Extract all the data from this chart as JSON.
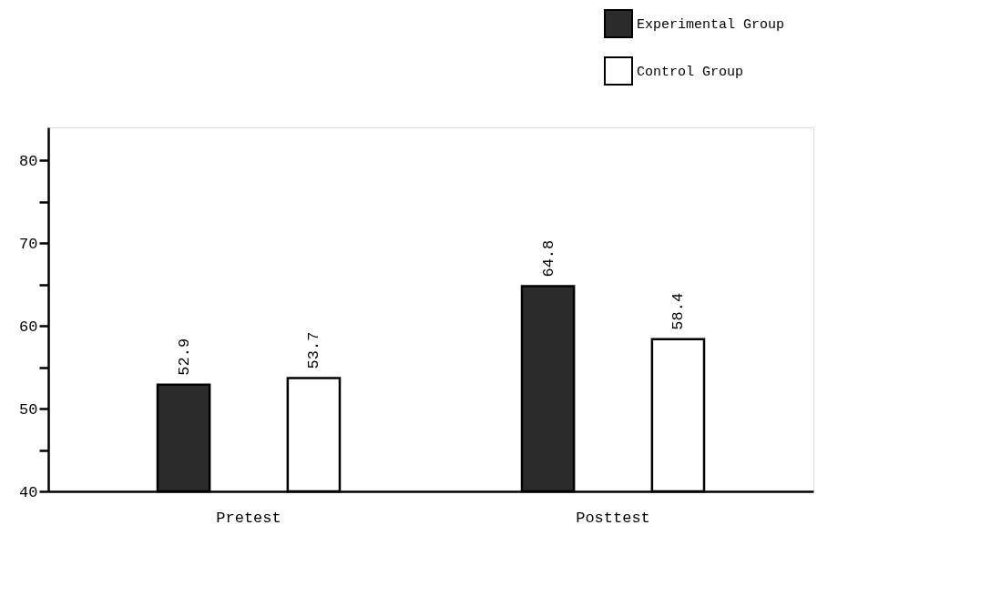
{
  "chart_data": {
    "type": "bar",
    "categories": [
      "Pretest",
      "Posttest"
    ],
    "series": [
      {
        "name": "Experimental Group",
        "color": "#2b2b2b",
        "values": [
          52.9,
          64.8
        ]
      },
      {
        "name": "Control Group",
        "color": "#ffffff",
        "values": [
          53.7,
          58.4
        ]
      }
    ],
    "ylim": [
      40,
      84
    ],
    "yticks": [
      40,
      {
        "value": 45,
        "label": null
      },
      50,
      {
        "value": 55,
        "label": null
      },
      60,
      {
        "value": 65,
        "label": null
      },
      70,
      {
        "value": 75,
        "label": null
      },
      80
    ],
    "data_labels": true,
    "legend": "top right",
    "grid": false
  }
}
